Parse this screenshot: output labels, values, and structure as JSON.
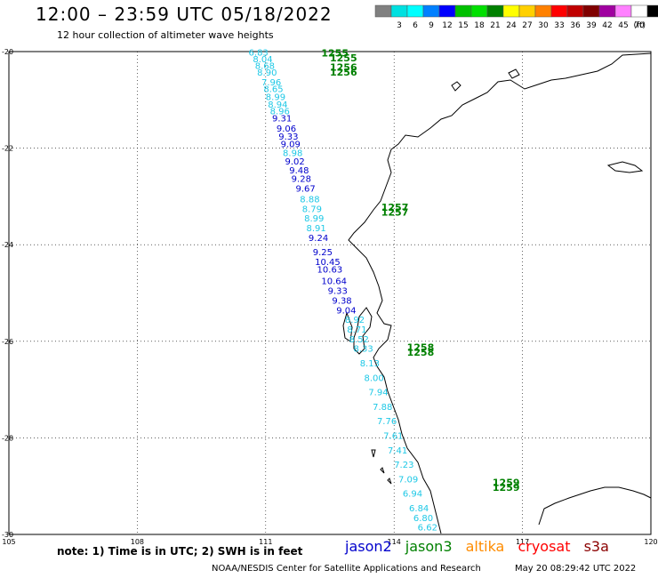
{
  "header": {
    "title": "12:00 – 23:59 UTC 05/18/2022",
    "subtitle": "12 hour collection of altimeter wave heights"
  },
  "legend": {
    "unit": "(ft)",
    "items": [
      {
        "label": "",
        "color": "#808080"
      },
      {
        "label": "3",
        "color": "#00e0e0"
      },
      {
        "label": "6",
        "color": "#00ffff"
      },
      {
        "label": "9",
        "color": "#0080ff"
      },
      {
        "label": "12",
        "color": "#0000ff"
      },
      {
        "label": "15",
        "color": "#00c000"
      },
      {
        "label": "18",
        "color": "#00e000"
      },
      {
        "label": "21",
        "color": "#008000"
      },
      {
        "label": "24",
        "color": "#ffff00"
      },
      {
        "label": "27",
        "color": "#ffd000"
      },
      {
        "label": "30",
        "color": "#ff8000"
      },
      {
        "label": "33",
        "color": "#ff0000"
      },
      {
        "label": "36",
        "color": "#c00000"
      },
      {
        "label": "39",
        "color": "#800000"
      },
      {
        "label": "42",
        "color": "#a000a0"
      },
      {
        "label": "45",
        "color": "#ff80ff"
      },
      {
        "label": "70",
        "color": "#ffffff"
      },
      {
        "label": "",
        "color": "#000000"
      }
    ]
  },
  "map": {
    "lon_range": [
      105,
      120
    ],
    "lat_range": [
      -30,
      -20
    ],
    "lon_ticks": [
      "105",
      "108",
      "111",
      "114",
      "117",
      "120"
    ],
    "lat_ticks": [
      "-20",
      "-22",
      "-24",
      "-26",
      "-28",
      "-30"
    ],
    "colors": {
      "jason2": "#0000cc",
      "jason3": "#008000",
      "altika": "#ff8c00",
      "cryosat": "#ff0000",
      "s3a": "#8b0000",
      "low": "#1ec8e6"
    },
    "time_labels": [
      {
        "text": "1255",
        "lon": 112.3,
        "lat": -20.1
      },
      {
        "text": "1255",
        "lon": 112.5,
        "lat": -20.2
      },
      {
        "text": "1256",
        "lon": 112.5,
        "lat": -20.4
      },
      {
        "text": "1256",
        "lon": 112.5,
        "lat": -20.5
      },
      {
        "text": "1257",
        "lon": 113.7,
        "lat": -23.3
      },
      {
        "text": "1257",
        "lon": 113.7,
        "lat": -23.4
      },
      {
        "text": "1258",
        "lon": 114.3,
        "lat": -26.2
      },
      {
        "text": "1258",
        "lon": 114.3,
        "lat": -26.3
      },
      {
        "text": "1259",
        "lon": 116.3,
        "lat": -29.0
      },
      {
        "text": "1259",
        "lon": 116.3,
        "lat": -29.1
      }
    ],
    "swh_readings": [
      {
        "value": "6.83",
        "lon": 110.6,
        "lat": -20.08,
        "level": "low"
      },
      {
        "value": "8.04",
        "lon": 110.7,
        "lat": -20.22,
        "level": "low"
      },
      {
        "value": "8.68",
        "lon": 110.75,
        "lat": -20.36,
        "level": "low"
      },
      {
        "value": "8.90",
        "lon": 110.8,
        "lat": -20.5,
        "level": "low"
      },
      {
        "value": "7.96",
        "lon": 110.9,
        "lat": -20.7,
        "level": "low"
      },
      {
        "value": "8.65",
        "lon": 110.95,
        "lat": -20.84,
        "level": "low"
      },
      {
        "value": "8.99",
        "lon": 111.0,
        "lat": -21.0,
        "level": "low"
      },
      {
        "value": "8.94",
        "lon": 111.05,
        "lat": -21.16,
        "level": "low"
      },
      {
        "value": "8.96",
        "lon": 111.1,
        "lat": -21.3,
        "level": "low"
      },
      {
        "value": "9.31",
        "lon": 111.15,
        "lat": -21.45,
        "level": "high"
      },
      {
        "value": "9.06",
        "lon": 111.25,
        "lat": -21.66,
        "level": "high"
      },
      {
        "value": "9.33",
        "lon": 111.3,
        "lat": -21.82,
        "level": "high"
      },
      {
        "value": "9.09",
        "lon": 111.35,
        "lat": -21.98,
        "level": "high"
      },
      {
        "value": "8.98",
        "lon": 111.4,
        "lat": -22.16,
        "level": "low"
      },
      {
        "value": "9.02",
        "lon": 111.45,
        "lat": -22.34,
        "level": "high"
      },
      {
        "value": "9.48",
        "lon": 111.55,
        "lat": -22.52,
        "level": "high"
      },
      {
        "value": "9.28",
        "lon": 111.6,
        "lat": -22.7,
        "level": "high"
      },
      {
        "value": "9.67",
        "lon": 111.7,
        "lat": -22.9,
        "level": "high"
      },
      {
        "value": "8.88",
        "lon": 111.8,
        "lat": -23.12,
        "level": "low"
      },
      {
        "value": "8.79",
        "lon": 111.85,
        "lat": -23.32,
        "level": "low"
      },
      {
        "value": "8.99",
        "lon": 111.9,
        "lat": -23.52,
        "level": "low"
      },
      {
        "value": "8.91",
        "lon": 111.95,
        "lat": -23.72,
        "level": "low"
      },
      {
        "value": "9.24",
        "lon": 112.0,
        "lat": -23.92,
        "level": "high"
      },
      {
        "value": "9.25",
        "lon": 112.1,
        "lat": -24.22,
        "level": "high"
      },
      {
        "value": "10.45",
        "lon": 112.15,
        "lat": -24.42,
        "level": "high"
      },
      {
        "value": "10.63",
        "lon": 112.2,
        "lat": -24.58,
        "level": "high"
      },
      {
        "value": "10.64",
        "lon": 112.3,
        "lat": -24.82,
        "level": "high"
      },
      {
        "value": "9.33",
        "lon": 112.45,
        "lat": -25.02,
        "level": "high"
      },
      {
        "value": "9.38",
        "lon": 112.55,
        "lat": -25.22,
        "level": "high"
      },
      {
        "value": "9.04",
        "lon": 112.65,
        "lat": -25.42,
        "level": "high"
      },
      {
        "value": "8.92",
        "lon": 112.85,
        "lat": -25.62,
        "level": "low"
      },
      {
        "value": "8.71",
        "lon": 112.9,
        "lat": -25.82,
        "level": "low"
      },
      {
        "value": "8.52",
        "lon": 112.95,
        "lat": -26.02,
        "level": "low"
      },
      {
        "value": "8.33",
        "lon": 113.05,
        "lat": -26.22,
        "level": "low"
      },
      {
        "value": "8.13",
        "lon": 113.2,
        "lat": -26.52,
        "level": "low"
      },
      {
        "value": "8.00",
        "lon": 113.3,
        "lat": -26.82,
        "level": "low"
      },
      {
        "value": "7.94",
        "lon": 113.4,
        "lat": -27.12,
        "level": "low"
      },
      {
        "value": "7.88",
        "lon": 113.5,
        "lat": -27.42,
        "level": "low"
      },
      {
        "value": "7.76",
        "lon": 113.6,
        "lat": -27.72,
        "level": "low"
      },
      {
        "value": "7.61",
        "lon": 113.75,
        "lat": -28.02,
        "level": "low"
      },
      {
        "value": "7.41",
        "lon": 113.85,
        "lat": -28.32,
        "level": "low"
      },
      {
        "value": "7.23",
        "lon": 114.0,
        "lat": -28.62,
        "level": "low"
      },
      {
        "value": "7.09",
        "lon": 114.1,
        "lat": -28.92,
        "level": "low"
      },
      {
        "value": "6.94",
        "lon": 114.2,
        "lat": -29.22,
        "level": "low"
      },
      {
        "value": "6.84",
        "lon": 114.35,
        "lat": -29.52,
        "level": "low"
      },
      {
        "value": "6.80",
        "lon": 114.45,
        "lat": -29.72,
        "level": "low"
      },
      {
        "value": "6.62",
        "lon": 114.55,
        "lat": -29.92,
        "level": "low"
      }
    ]
  },
  "footer": {
    "note": "note:  1) Time is in UTC;  2) SWH is in feet",
    "satellites": [
      {
        "name": "jason2",
        "key": "jason2"
      },
      {
        "name": "jason3",
        "key": "jason3"
      },
      {
        "name": "altika",
        "key": "altika"
      },
      {
        "name": "cryosat",
        "key": "cryosat"
      },
      {
        "name": "s3a",
        "key": "s3a"
      }
    ],
    "credit": "NOAA/NESDIS Center for Satellite Applications and Research",
    "timestamp": "May 20 08:29:42 UTC 2022"
  }
}
